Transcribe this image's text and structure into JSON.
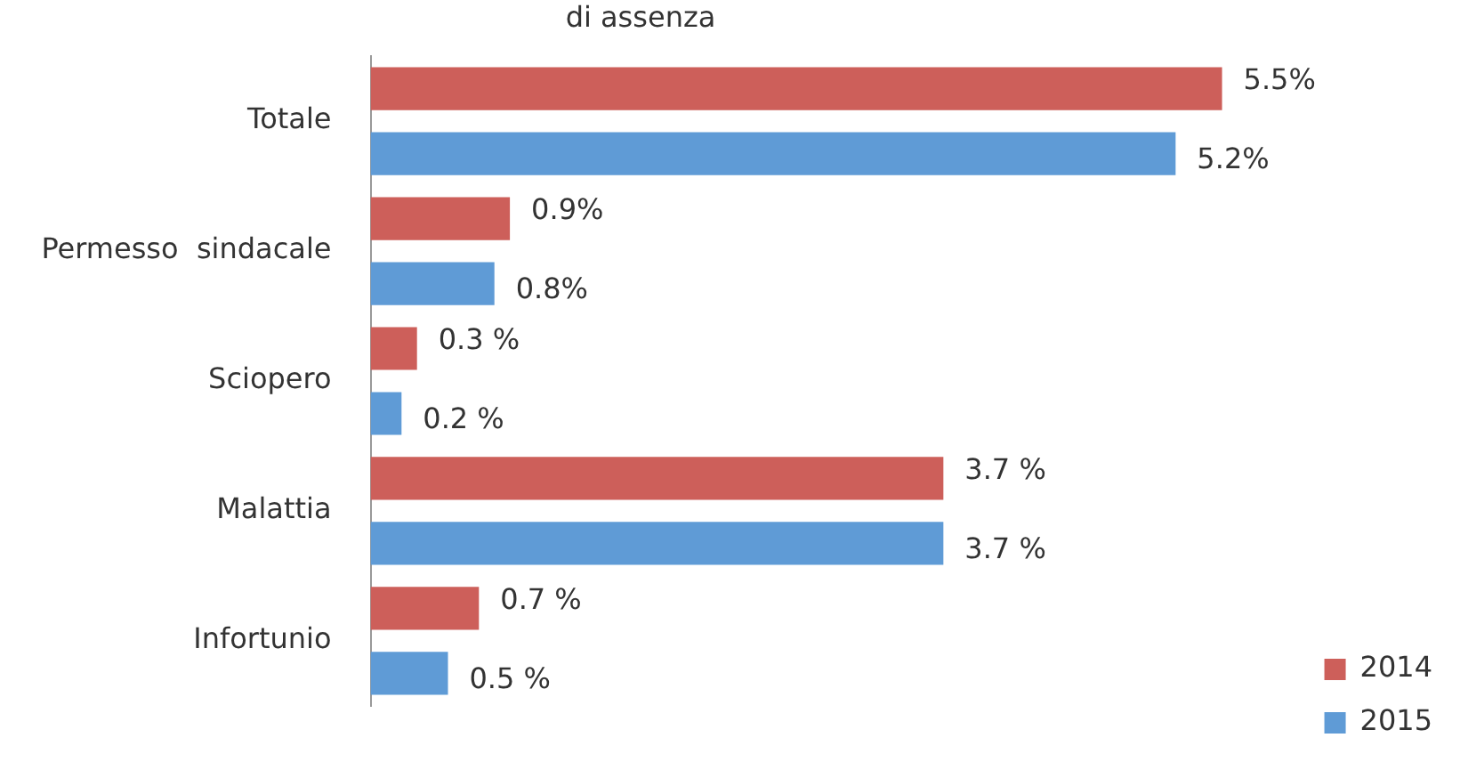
{
  "chart_data": {
    "type": "bar",
    "orientation": "horizontal",
    "title": "di assenza",
    "categories": [
      "Totale",
      "Permesso  sindacale",
      "Sciopero",
      "Malattia",
      "Infortunio"
    ],
    "series": [
      {
        "name": "2014",
        "color": "#cd5f5a",
        "values": [
          5.5,
          0.9,
          0.3,
          3.7,
          0.7
        ],
        "value_labels": [
          "5.5%",
          "0.9%",
          "0.3 %",
          "3.7 %",
          "0.7 %"
        ]
      },
      {
        "name": "2015",
        "color": "#5f9bd6",
        "values": [
          5.2,
          0.8,
          0.2,
          3.7,
          0.5
        ],
        "value_labels": [
          "5.2%",
          "0.8%",
          "0.2 %",
          "3.7 %",
          "0.5 %"
        ]
      }
    ],
    "legend": "bottom right",
    "tick_labels": "y"
  }
}
